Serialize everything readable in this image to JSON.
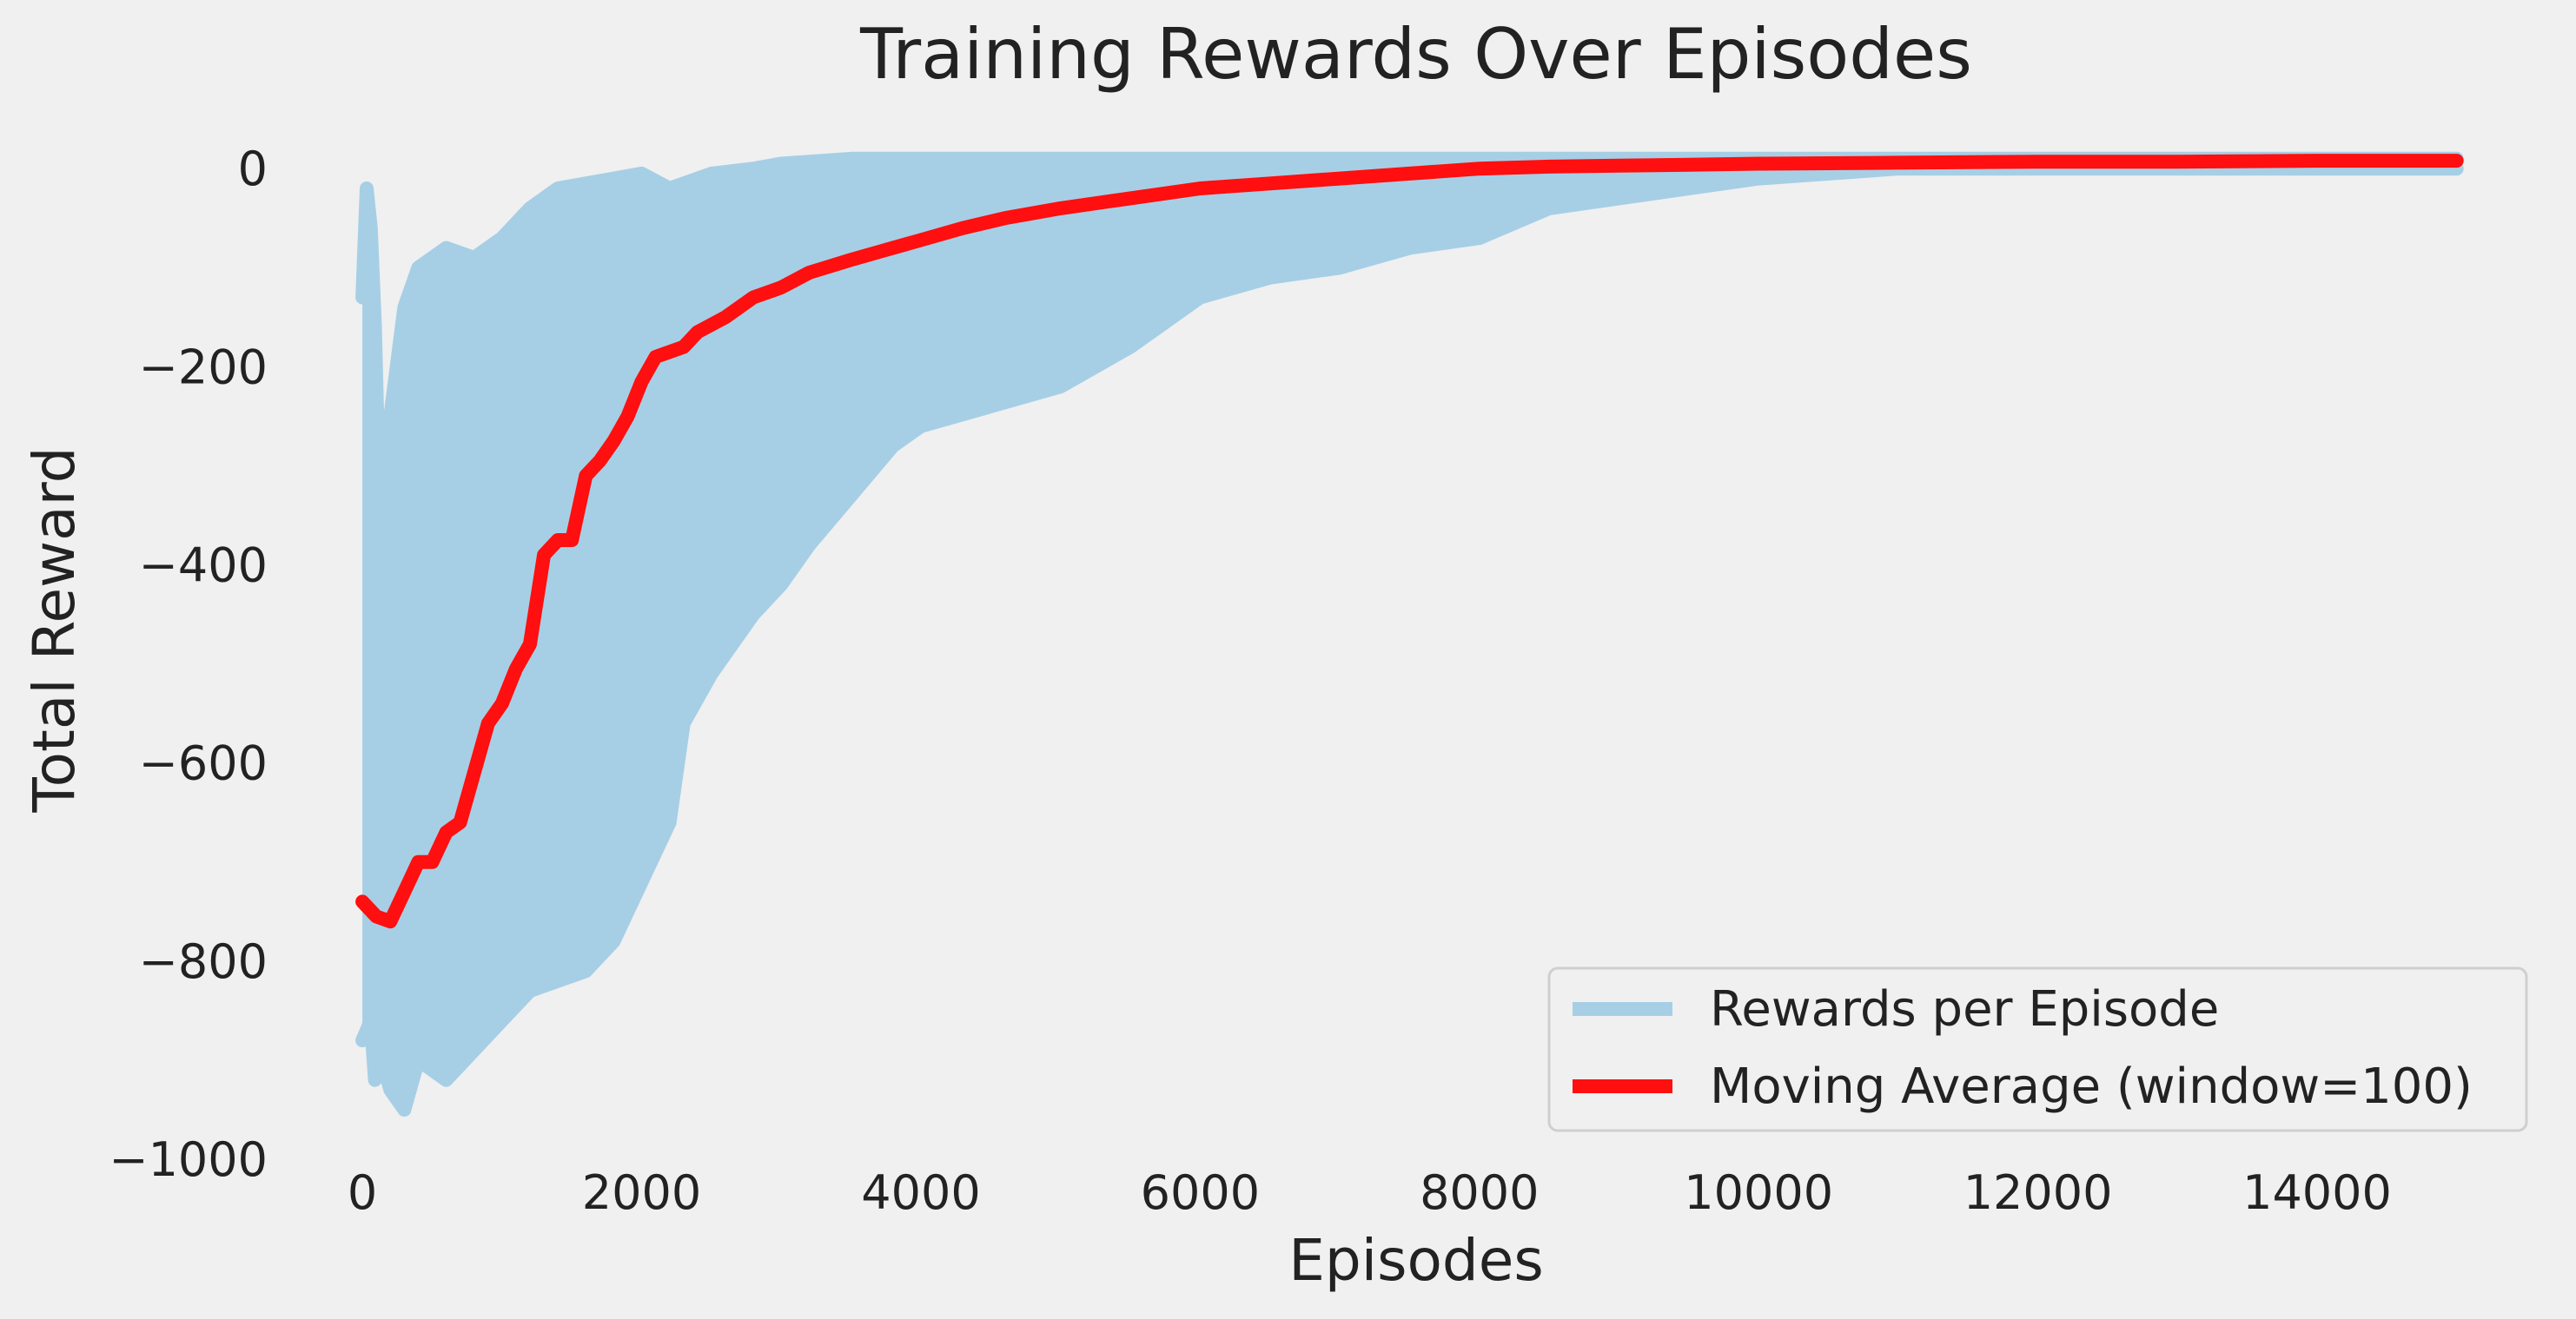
{
  "chart_data": {
    "type": "line",
    "title": "Training Rewards Over Episodes",
    "xlabel": "Episodes",
    "ylabel": "Total Reward",
    "xlim": [
      -200,
      15450
    ],
    "ylim": [
      -1000,
      30
    ],
    "x_ticks": [
      0,
      2000,
      4000,
      6000,
      8000,
      10000,
      12000,
      14000
    ],
    "x_tick_labels": [
      "0",
      "2000",
      "4000",
      "6000",
      "8000",
      "10000",
      "12000",
      "14000"
    ],
    "y_ticks": [
      0,
      -200,
      -400,
      -600,
      -800,
      -1000
    ],
    "y_tick_labels": [
      "0",
      "−200",
      "−400",
      "−600",
      "−800",
      "−1000"
    ],
    "grid": false,
    "legend_position": "bottom-right",
    "background_color": "#f0f0f0",
    "series": [
      {
        "name": "Rewards per Episode",
        "color": "#a6cfe6",
        "x_upper": [
          0,
          30,
          60,
          90,
          120,
          200,
          300,
          400,
          600,
          800,
          1000,
          1200,
          1400,
          1600,
          1800,
          2000,
          2200,
          2500,
          2800,
          3000,
          3500,
          4000,
          4500,
          5000,
          5500,
          6000,
          6500,
          7000,
          7500,
          8000,
          8500,
          9000,
          9500,
          10000,
          11000,
          12000,
          13000,
          14000,
          15000
        ],
        "y_upper": [
          -130,
          -20,
          -60,
          -160,
          -330,
          -250,
          -140,
          -100,
          -80,
          -90,
          -70,
          -40,
          -20,
          -15,
          -10,
          -5,
          -20,
          -5,
          0,
          5,
          10,
          10,
          10,
          10,
          10,
          10,
          10,
          10,
          10,
          10,
          10,
          10,
          10,
          10,
          10,
          10,
          10,
          10,
          10
        ],
        "x_lower": [
          0,
          30,
          60,
          90,
          120,
          200,
          300,
          400,
          600,
          800,
          1000,
          1200,
          1400,
          1600,
          1800,
          2000,
          2200,
          2300,
          2500,
          2800,
          3000,
          3200,
          3500,
          3800,
          4000,
          4500,
          5000,
          5500,
          6000,
          6500,
          7000,
          7500,
          8000,
          8500,
          9000,
          9500,
          10000,
          11000,
          12000,
          13000,
          14000,
          15000
        ],
        "y_lower": [
          -880,
          -870,
          -860,
          -920,
          -890,
          -930,
          -950,
          -900,
          -920,
          -890,
          -860,
          -830,
          -820,
          -810,
          -780,
          -720,
          -660,
          -560,
          -510,
          -450,
          -420,
          -380,
          -330,
          -280,
          -260,
          -240,
          -220,
          -180,
          -130,
          -110,
          -100,
          -80,
          -70,
          -40,
          -30,
          -20,
          -10,
          0,
          0,
          0,
          0,
          0
        ]
      },
      {
        "name": "Moving Average (window=100)",
        "color": "#ff0f0f",
        "x": [
          0,
          100,
          200,
          300,
          400,
          500,
          600,
          700,
          800,
          900,
          1000,
          1100,
          1200,
          1300,
          1400,
          1500,
          1600,
          1700,
          1800,
          1900,
          2000,
          2100,
          2200,
          2300,
          2400,
          2600,
          2800,
          3000,
          3200,
          3500,
          3800,
          4000,
          4300,
          4600,
          5000,
          5500,
          6000,
          6500,
          7000,
          7500,
          8000,
          8500,
          9000,
          9500,
          10000,
          11000,
          12000,
          13000,
          14000,
          15000
        ],
        "y": [
          -740,
          -755,
          -760,
          -730,
          -700,
          -700,
          -670,
          -660,
          -610,
          -560,
          -540,
          -505,
          -480,
          -390,
          -375,
          -375,
          -310,
          -295,
          -275,
          -250,
          -215,
          -190,
          -185,
          -180,
          -165,
          -150,
          -130,
          -120,
          -105,
          -92,
          -80,
          -72,
          -60,
          -50,
          -40,
          -30,
          -20,
          -15,
          -10,
          -5,
          0,
          2,
          3,
          4,
          5,
          6,
          7,
          7,
          8,
          8
        ]
      }
    ]
  }
}
